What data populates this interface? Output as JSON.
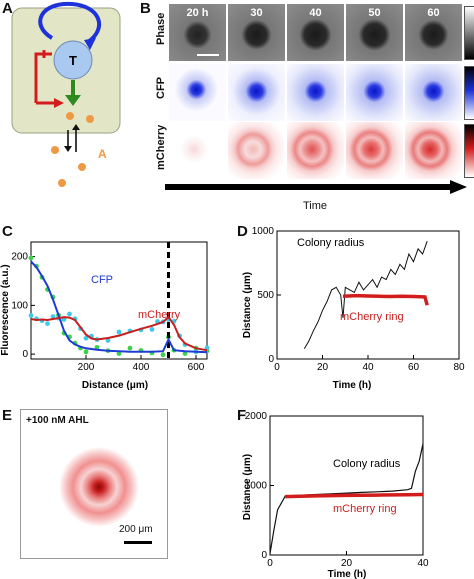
{
  "panels": {
    "A": {
      "letter": "A",
      "node_label": "T",
      "signal_label": "A"
    },
    "B": {
      "letter": "B",
      "time_points": [
        "20 h",
        "30",
        "40",
        "50",
        "60"
      ],
      "rows": [
        "Phase",
        "CFP",
        "mCherry"
      ],
      "time_axis_label": "Time"
    },
    "C": {
      "letter": "C",
      "ylabel": "Fluorescence (a.u.)",
      "xlabel": "Distance (μm)",
      "series_labels": [
        "CFP",
        "mCherry"
      ],
      "colors": {
        "CFP": "#1f3bd6",
        "mCherry": "#c81e1e",
        "cfp_points": "#3ad24a",
        "mcherry_points": "#3fc8e8"
      }
    },
    "D": {
      "letter": "D",
      "ylabel": "Distance (μm)",
      "xlabel": "Time (h)",
      "annotations": [
        "Colony radius",
        "mCherry ring"
      ]
    },
    "E": {
      "letter": "E",
      "condition": "+100 nM AHL",
      "scalebar_label": "200 μm"
    },
    "F": {
      "letter": "F",
      "ylabel": "Distance (μm)",
      "xlabel": "Time (h)",
      "annotations": [
        "Colony radius",
        "mCherry ring"
      ]
    }
  },
  "chart_data": [
    {
      "type": "line",
      "panel": "C",
      "xlabel": "Distance (μm)",
      "ylabel": "Fluorescence (a.u.)",
      "xlim": [
        0,
        640
      ],
      "ylim": [
        -10,
        230
      ],
      "xticks": [
        200,
        400,
        600
      ],
      "yticks": [
        0,
        100,
        200
      ],
      "vline_x": 500,
      "series": [
        {
          "name": "CFP",
          "x": [
            0,
            20,
            40,
            60,
            80,
            100,
            120,
            140,
            160,
            180,
            200,
            240,
            280,
            320,
            360,
            400,
            440,
            480,
            500,
            520,
            560,
            600,
            640
          ],
          "values": [
            190,
            178,
            160,
            140,
            112,
            80,
            48,
            28,
            20,
            15,
            12,
            9,
            7,
            6,
            5,
            5,
            5,
            6,
            30,
            8,
            6,
            5,
            4
          ]
        },
        {
          "name": "mCherry",
          "x": [
            0,
            20,
            40,
            60,
            80,
            100,
            120,
            140,
            160,
            180,
            200,
            220,
            240,
            280,
            320,
            360,
            400,
            440,
            460,
            480,
            500,
            520,
            540,
            560,
            600,
            640
          ],
          "values": [
            72,
            70,
            71,
            70,
            72,
            74,
            76,
            75,
            70,
            55,
            40,
            32,
            30,
            33,
            38,
            45,
            52,
            58,
            62,
            66,
            76,
            60,
            35,
            22,
            12,
            8
          ]
        }
      ]
    },
    {
      "type": "line",
      "panel": "D",
      "xlabel": "Time (h)",
      "ylabel": "Distance (μm)",
      "xlim": [
        0,
        80
      ],
      "ylim": [
        0,
        1000
      ],
      "xticks": [
        0,
        20,
        40,
        60,
        80
      ],
      "yticks": [
        0,
        500,
        1000
      ],
      "series": [
        {
          "name": "Colony radius",
          "x": [
            12,
            14,
            16,
            18,
            20,
            22,
            24,
            26,
            28,
            29,
            30,
            32,
            34,
            36,
            38,
            40,
            42,
            44,
            46,
            48,
            50,
            52,
            54,
            56,
            58,
            60,
            62,
            64,
            66
          ],
          "values": [
            80,
            140,
            220,
            290,
            380,
            450,
            540,
            560,
            500,
            320,
            560,
            540,
            520,
            600,
            540,
            580,
            620,
            560,
            640,
            620,
            700,
            660,
            740,
            700,
            820,
            760,
            860,
            820,
            920
          ]
        },
        {
          "name": "mCherry ring",
          "x": [
            29,
            35,
            40,
            45,
            50,
            55,
            60,
            65,
            66
          ],
          "values": [
            490,
            495,
            492,
            490,
            488,
            490,
            488,
            485,
            420
          ]
        }
      ]
    },
    {
      "type": "line",
      "panel": "F",
      "xlabel": "Time (h)",
      "ylabel": "Distance (μm)",
      "xlim": [
        0,
        40
      ],
      "ylim": [
        0,
        2000
      ],
      "xticks": [
        0,
        20,
        40
      ],
      "yticks": [
        0,
        1000,
        2000
      ],
      "series": [
        {
          "name": "Colony radius",
          "x": [
            0,
            1,
            2,
            4,
            8,
            12,
            16,
            20,
            24,
            28,
            32,
            36,
            37,
            38,
            39,
            40
          ],
          "values": [
            20,
            350,
            650,
            850,
            860,
            870,
            880,
            890,
            900,
            910,
            920,
            940,
            960,
            1200,
            1350,
            1600
          ]
        },
        {
          "name": "mCherry ring",
          "x": [
            4,
            8,
            12,
            16,
            20,
            24,
            28,
            32,
            36,
            40
          ],
          "values": [
            840,
            845,
            850,
            855,
            858,
            860,
            862,
            865,
            868,
            870
          ]
        }
      ]
    }
  ]
}
